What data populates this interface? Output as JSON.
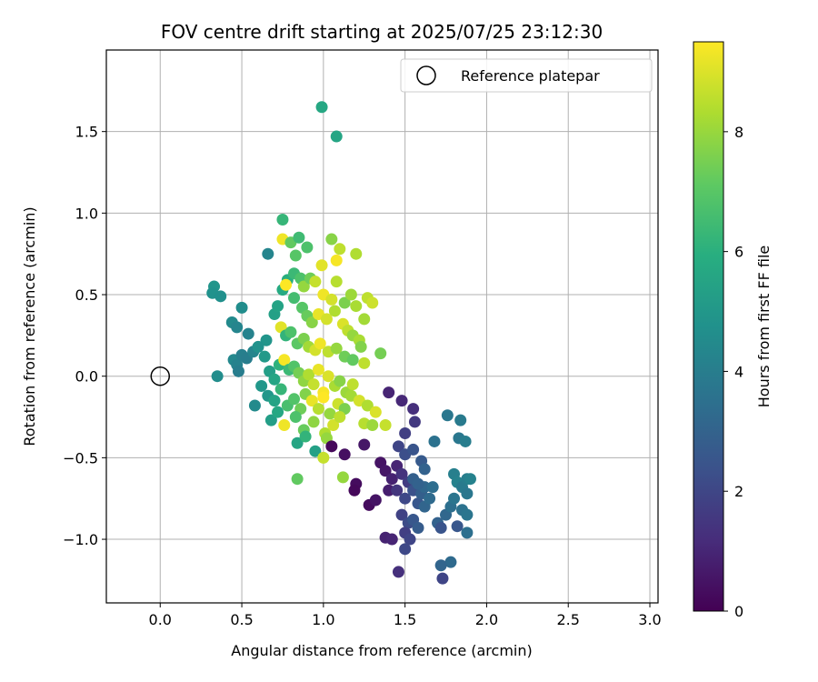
{
  "chart_data": {
    "type": "scatter",
    "title": "FOV centre drift starting at 2025/07/25 23:12:30",
    "xlabel": "Angular distance from reference (arcmin)",
    "ylabel": "Rotation from reference (arcmin)",
    "xlim": [
      -0.33,
      3.05
    ],
    "ylim": [
      -1.39,
      2.0
    ],
    "xticks": [
      0.0,
      0.5,
      1.0,
      1.5,
      2.0,
      2.5,
      3.0
    ],
    "xtick_labels": [
      "0.0",
      "0.5",
      "1.0",
      "1.5",
      "2.0",
      "2.5",
      "3.0"
    ],
    "yticks": [
      -1.0,
      -0.5,
      0.0,
      0.5,
      1.0,
      1.5
    ],
    "ytick_labels": [
      "−1.0",
      "−0.5",
      "0.0",
      "0.5",
      "1.0",
      "1.5"
    ],
    "grid": true,
    "legend": {
      "placement": "top-right",
      "entries": [
        "Reference platepar"
      ]
    },
    "reference_point": {
      "x": 0.0,
      "y": 0.0,
      "label": "Reference platepar"
    },
    "colorbar": {
      "label": "Hours from first FF file",
      "min": 0,
      "max": 9.5,
      "ticks": [
        0,
        2,
        4,
        6,
        8
      ],
      "tick_labels": [
        "0",
        "2",
        "4",
        "6",
        "8"
      ],
      "colormap": "viridis"
    },
    "points": [
      {
        "x": 0.99,
        "y": 1.65,
        "c": 5.7
      },
      {
        "x": 1.08,
        "y": 1.47,
        "c": 5.6
      },
      {
        "x": 0.75,
        "y": 0.96,
        "c": 6.3
      },
      {
        "x": 0.66,
        "y": 0.75,
        "c": 4.3
      },
      {
        "x": 0.75,
        "y": 0.84,
        "c": 9.3
      },
      {
        "x": 0.8,
        "y": 0.82,
        "c": 7.2
      },
      {
        "x": 0.85,
        "y": 0.85,
        "c": 6.5
      },
      {
        "x": 0.9,
        "y": 0.79,
        "c": 6.8
      },
      {
        "x": 1.05,
        "y": 0.84,
        "c": 7.8
      },
      {
        "x": 1.1,
        "y": 0.78,
        "c": 8.6
      },
      {
        "x": 1.2,
        "y": 0.75,
        "c": 8.4
      },
      {
        "x": 1.08,
        "y": 0.71,
        "c": 9.4
      },
      {
        "x": 0.99,
        "y": 0.68,
        "c": 9.1
      },
      {
        "x": 0.83,
        "y": 0.74,
        "c": 7.0
      },
      {
        "x": 0.33,
        "y": 0.55,
        "c": 4.9
      },
      {
        "x": 0.32,
        "y": 0.51,
        "c": 4.8
      },
      {
        "x": 0.37,
        "y": 0.49,
        "c": 4.7
      },
      {
        "x": 0.5,
        "y": 0.42,
        "c": 4.6
      },
      {
        "x": 0.44,
        "y": 0.33,
        "c": 4.5
      },
      {
        "x": 0.47,
        "y": 0.3,
        "c": 4.3
      },
      {
        "x": 0.54,
        "y": 0.26,
        "c": 4.2
      },
      {
        "x": 0.65,
        "y": 0.22,
        "c": 4.9
      },
      {
        "x": 0.7,
        "y": 0.38,
        "c": 5.4
      },
      {
        "x": 0.72,
        "y": 0.43,
        "c": 5.5
      },
      {
        "x": 0.75,
        "y": 0.53,
        "c": 5.8
      },
      {
        "x": 0.78,
        "y": 0.59,
        "c": 6.0
      },
      {
        "x": 0.82,
        "y": 0.63,
        "c": 6.4
      },
      {
        "x": 0.86,
        "y": 0.6,
        "c": 6.8
      },
      {
        "x": 0.88,
        "y": 0.55,
        "c": 8.0
      },
      {
        "x": 0.92,
        "y": 0.6,
        "c": 7.4
      },
      {
        "x": 0.95,
        "y": 0.58,
        "c": 8.7
      },
      {
        "x": 1.0,
        "y": 0.5,
        "c": 9.3
      },
      {
        "x": 1.05,
        "y": 0.47,
        "c": 8.9
      },
      {
        "x": 1.08,
        "y": 0.58,
        "c": 8.5
      },
      {
        "x": 1.13,
        "y": 0.45,
        "c": 7.6
      },
      {
        "x": 1.17,
        "y": 0.5,
        "c": 8.1
      },
      {
        "x": 1.2,
        "y": 0.43,
        "c": 8.3
      },
      {
        "x": 1.27,
        "y": 0.48,
        "c": 8.6
      },
      {
        "x": 1.3,
        "y": 0.45,
        "c": 8.8
      },
      {
        "x": 1.25,
        "y": 0.35,
        "c": 8.2
      },
      {
        "x": 0.77,
        "y": 0.56,
        "c": 9.5
      },
      {
        "x": 0.82,
        "y": 0.48,
        "c": 6.6
      },
      {
        "x": 0.87,
        "y": 0.42,
        "c": 7.0
      },
      {
        "x": 0.9,
        "y": 0.37,
        "c": 7.3
      },
      {
        "x": 0.93,
        "y": 0.33,
        "c": 7.8
      },
      {
        "x": 0.97,
        "y": 0.38,
        "c": 9.2
      },
      {
        "x": 1.02,
        "y": 0.35,
        "c": 8.9
      },
      {
        "x": 1.07,
        "y": 0.4,
        "c": 8.4
      },
      {
        "x": 1.12,
        "y": 0.32,
        "c": 9.0
      },
      {
        "x": 1.15,
        "y": 0.28,
        "c": 8.6
      },
      {
        "x": 1.18,
        "y": 0.25,
        "c": 8.0
      },
      {
        "x": 1.22,
        "y": 0.22,
        "c": 8.3
      },
      {
        "x": 1.23,
        "y": 0.18,
        "c": 7.7
      },
      {
        "x": 0.74,
        "y": 0.3,
        "c": 9.1
      },
      {
        "x": 0.77,
        "y": 0.25,
        "c": 6.2
      },
      {
        "x": 0.8,
        "y": 0.27,
        "c": 6.8
      },
      {
        "x": 0.84,
        "y": 0.2,
        "c": 7.1
      },
      {
        "x": 0.88,
        "y": 0.23,
        "c": 7.6
      },
      {
        "x": 0.91,
        "y": 0.18,
        "c": 8.2
      },
      {
        "x": 0.95,
        "y": 0.16,
        "c": 8.9
      },
      {
        "x": 0.98,
        "y": 0.2,
        "c": 9.3
      },
      {
        "x": 1.03,
        "y": 0.15,
        "c": 8.6
      },
      {
        "x": 1.08,
        "y": 0.17,
        "c": 8.0
      },
      {
        "x": 1.13,
        "y": 0.12,
        "c": 7.4
      },
      {
        "x": 1.18,
        "y": 0.1,
        "c": 7.2
      },
      {
        "x": 1.25,
        "y": 0.08,
        "c": 8.6
      },
      {
        "x": 1.35,
        "y": 0.14,
        "c": 7.5
      },
      {
        "x": 0.45,
        "y": 0.1,
        "c": 4.4
      },
      {
        "x": 0.47,
        "y": 0.07,
        "c": 4.2
      },
      {
        "x": 0.5,
        "y": 0.13,
        "c": 4.1
      },
      {
        "x": 0.53,
        "y": 0.11,
        "c": 4.0
      },
      {
        "x": 0.57,
        "y": 0.15,
        "c": 4.3
      },
      {
        "x": 0.6,
        "y": 0.18,
        "c": 4.8
      },
      {
        "x": 0.64,
        "y": 0.12,
        "c": 5.1
      },
      {
        "x": 0.48,
        "y": 0.03,
        "c": 4.0
      },
      {
        "x": 0.35,
        "y": 0.0,
        "c": 4.6
      },
      {
        "x": 0.62,
        "y": -0.06,
        "c": 5.0
      },
      {
        "x": 0.67,
        "y": 0.03,
        "c": 5.3
      },
      {
        "x": 0.7,
        "y": -0.02,
        "c": 5.6
      },
      {
        "x": 0.73,
        "y": 0.07,
        "c": 6.1
      },
      {
        "x": 0.76,
        "y": 0.1,
        "c": 9.4
      },
      {
        "x": 0.79,
        "y": 0.04,
        "c": 6.4
      },
      {
        "x": 0.82,
        "y": 0.06,
        "c": 6.9
      },
      {
        "x": 0.85,
        "y": 0.02,
        "c": 7.5
      },
      {
        "x": 0.88,
        "y": -0.03,
        "c": 7.9
      },
      {
        "x": 0.91,
        "y": 0.01,
        "c": 8.4
      },
      {
        "x": 0.94,
        "y": -0.05,
        "c": 8.7
      },
      {
        "x": 0.97,
        "y": 0.04,
        "c": 9.2
      },
      {
        "x": 1.0,
        "y": -0.1,
        "c": 9.4
      },
      {
        "x": 1.03,
        "y": 0.0,
        "c": 9.0
      },
      {
        "x": 1.07,
        "y": -0.06,
        "c": 8.3
      },
      {
        "x": 1.1,
        "y": -0.03,
        "c": 7.8
      },
      {
        "x": 1.14,
        "y": -0.1,
        "c": 8.1
      },
      {
        "x": 1.18,
        "y": -0.05,
        "c": 8.6
      },
      {
        "x": 0.58,
        "y": -0.18,
        "c": 4.5
      },
      {
        "x": 0.66,
        "y": -0.12,
        "c": 5.0
      },
      {
        "x": 0.7,
        "y": -0.15,
        "c": 5.5
      },
      {
        "x": 0.74,
        "y": -0.08,
        "c": 6.3
      },
      {
        "x": 0.78,
        "y": -0.18,
        "c": 6.7
      },
      {
        "x": 0.82,
        "y": -0.14,
        "c": 6.9
      },
      {
        "x": 0.86,
        "y": -0.2,
        "c": 7.4
      },
      {
        "x": 0.89,
        "y": -0.11,
        "c": 7.7
      },
      {
        "x": 0.93,
        "y": -0.15,
        "c": 9.2
      },
      {
        "x": 0.97,
        "y": -0.2,
        "c": 8.5
      },
      {
        "x": 1.0,
        "y": -0.13,
        "c": 9.5
      },
      {
        "x": 1.04,
        "y": -0.23,
        "c": 8.0
      },
      {
        "x": 1.09,
        "y": -0.17,
        "c": 8.8
      },
      {
        "x": 1.13,
        "y": -0.2,
        "c": 7.6
      },
      {
        "x": 1.17,
        "y": -0.12,
        "c": 8.2
      },
      {
        "x": 1.22,
        "y": -0.15,
        "c": 8.9
      },
      {
        "x": 1.27,
        "y": -0.18,
        "c": 8.4
      },
      {
        "x": 1.32,
        "y": -0.22,
        "c": 9.0
      },
      {
        "x": 0.68,
        "y": -0.27,
        "c": 5.3
      },
      {
        "x": 0.72,
        "y": -0.22,
        "c": 5.7
      },
      {
        "x": 0.76,
        "y": -0.3,
        "c": 9.3
      },
      {
        "x": 0.83,
        "y": -0.25,
        "c": 6.8
      },
      {
        "x": 0.88,
        "y": -0.33,
        "c": 7.3
      },
      {
        "x": 0.94,
        "y": -0.28,
        "c": 7.9
      },
      {
        "x": 1.01,
        "y": -0.35,
        "c": 8.4
      },
      {
        "x": 1.06,
        "y": -0.3,
        "c": 8.9
      },
      {
        "x": 1.1,
        "y": -0.25,
        "c": 8.6
      },
      {
        "x": 1.25,
        "y": -0.29,
        "c": 8.5
      },
      {
        "x": 1.3,
        "y": -0.3,
        "c": 8.1
      },
      {
        "x": 1.38,
        "y": -0.3,
        "c": 8.7
      },
      {
        "x": 0.84,
        "y": -0.41,
        "c": 5.6
      },
      {
        "x": 0.89,
        "y": -0.37,
        "c": 6.2
      },
      {
        "x": 0.95,
        "y": -0.46,
        "c": 5.4
      },
      {
        "x": 1.02,
        "y": -0.38,
        "c": 8.0
      },
      {
        "x": 1.0,
        "y": -0.5,
        "c": 8.7
      },
      {
        "x": 0.84,
        "y": -0.63,
        "c": 7.2
      },
      {
        "x": 1.12,
        "y": -0.62,
        "c": 8.0
      },
      {
        "x": 1.05,
        "y": -0.43,
        "c": 0.2
      },
      {
        "x": 1.13,
        "y": -0.48,
        "c": 0.4
      },
      {
        "x": 1.25,
        "y": -0.42,
        "c": 0.6
      },
      {
        "x": 1.2,
        "y": -0.66,
        "c": 0.3
      },
      {
        "x": 1.19,
        "y": -0.7,
        "c": 0.2
      },
      {
        "x": 1.28,
        "y": -0.79,
        "c": 0.3
      },
      {
        "x": 1.32,
        "y": -0.76,
        "c": 0.5
      },
      {
        "x": 1.35,
        "y": -0.53,
        "c": 0.5
      },
      {
        "x": 1.38,
        "y": -0.58,
        "c": 0.6
      },
      {
        "x": 1.4,
        "y": -0.7,
        "c": 0.8
      },
      {
        "x": 1.42,
        "y": -0.63,
        "c": 0.9
      },
      {
        "x": 1.45,
        "y": -0.55,
        "c": 1.0
      },
      {
        "x": 1.38,
        "y": -0.99,
        "c": 0.9
      },
      {
        "x": 1.42,
        "y": -1.0,
        "c": 1.0
      },
      {
        "x": 1.46,
        "y": -1.2,
        "c": 1.3
      },
      {
        "x": 1.4,
        "y": -0.1,
        "c": 1.0
      },
      {
        "x": 1.48,
        "y": -0.15,
        "c": 1.1
      },
      {
        "x": 1.55,
        "y": -0.2,
        "c": 1.3
      },
      {
        "x": 1.56,
        "y": -0.28,
        "c": 1.6
      },
      {
        "x": 1.5,
        "y": -0.35,
        "c": 1.8
      },
      {
        "x": 1.46,
        "y": -0.43,
        "c": 2.0
      },
      {
        "x": 1.5,
        "y": -0.48,
        "c": 2.3
      },
      {
        "x": 1.55,
        "y": -0.45,
        "c": 2.5
      },
      {
        "x": 1.6,
        "y": -0.52,
        "c": 2.7
      },
      {
        "x": 1.62,
        "y": -0.57,
        "c": 3.0
      },
      {
        "x": 1.48,
        "y": -0.6,
        "c": 1.4
      },
      {
        "x": 1.52,
        "y": -0.65,
        "c": 1.7
      },
      {
        "x": 1.45,
        "y": -0.7,
        "c": 1.5
      },
      {
        "x": 1.5,
        "y": -0.75,
        "c": 2.1
      },
      {
        "x": 1.55,
        "y": -0.7,
        "c": 2.4
      },
      {
        "x": 1.58,
        "y": -0.78,
        "c": 2.6
      },
      {
        "x": 1.6,
        "y": -0.72,
        "c": 2.9
      },
      {
        "x": 1.62,
        "y": -0.68,
        "c": 3.2
      },
      {
        "x": 1.48,
        "y": -0.85,
        "c": 1.9
      },
      {
        "x": 1.52,
        "y": -0.9,
        "c": 2.2
      },
      {
        "x": 1.55,
        "y": -0.88,
        "c": 2.6
      },
      {
        "x": 1.58,
        "y": -0.93,
        "c": 2.8
      },
      {
        "x": 1.5,
        "y": -0.96,
        "c": 1.8
      },
      {
        "x": 1.53,
        "y": -1.0,
        "c": 2.0
      },
      {
        "x": 1.5,
        "y": -1.06,
        "c": 2.1
      },
      {
        "x": 1.55,
        "y": -0.63,
        "c": 2.9
      },
      {
        "x": 1.58,
        "y": -0.66,
        "c": 3.0
      },
      {
        "x": 1.62,
        "y": -0.8,
        "c": 3.1
      },
      {
        "x": 1.65,
        "y": -0.75,
        "c": 3.3
      },
      {
        "x": 1.67,
        "y": -0.68,
        "c": 3.4
      },
      {
        "x": 1.68,
        "y": -0.4,
        "c": 3.6
      },
      {
        "x": 1.7,
        "y": -0.9,
        "c": 3.0
      },
      {
        "x": 1.72,
        "y": -0.93,
        "c": 2.5
      },
      {
        "x": 1.75,
        "y": -0.85,
        "c": 3.2
      },
      {
        "x": 1.78,
        "y": -0.8,
        "c": 3.5
      },
      {
        "x": 1.8,
        "y": -0.75,
        "c": 3.7
      },
      {
        "x": 1.76,
        "y": -0.24,
        "c": 3.8
      },
      {
        "x": 1.84,
        "y": -0.27,
        "c": 3.9
      },
      {
        "x": 1.83,
        "y": -0.38,
        "c": 3.8
      },
      {
        "x": 1.87,
        "y": -0.4,
        "c": 4.0
      },
      {
        "x": 1.8,
        "y": -0.6,
        "c": 4.1
      },
      {
        "x": 1.82,
        "y": -0.65,
        "c": 4.2
      },
      {
        "x": 1.85,
        "y": -0.68,
        "c": 3.9
      },
      {
        "x": 1.88,
        "y": -0.63,
        "c": 4.0
      },
      {
        "x": 1.9,
        "y": -0.63,
        "c": 4.2
      },
      {
        "x": 1.88,
        "y": -0.72,
        "c": 3.8
      },
      {
        "x": 1.85,
        "y": -0.82,
        "c": 3.6
      },
      {
        "x": 1.88,
        "y": -0.85,
        "c": 3.7
      },
      {
        "x": 1.82,
        "y": -0.92,
        "c": 2.6
      },
      {
        "x": 1.88,
        "y": -0.96,
        "c": 3.5
      },
      {
        "x": 1.78,
        "y": -1.14,
        "c": 3.3
      },
      {
        "x": 1.72,
        "y": -1.16,
        "c": 3.1
      },
      {
        "x": 1.73,
        "y": -1.24,
        "c": 2.0
      }
    ]
  }
}
